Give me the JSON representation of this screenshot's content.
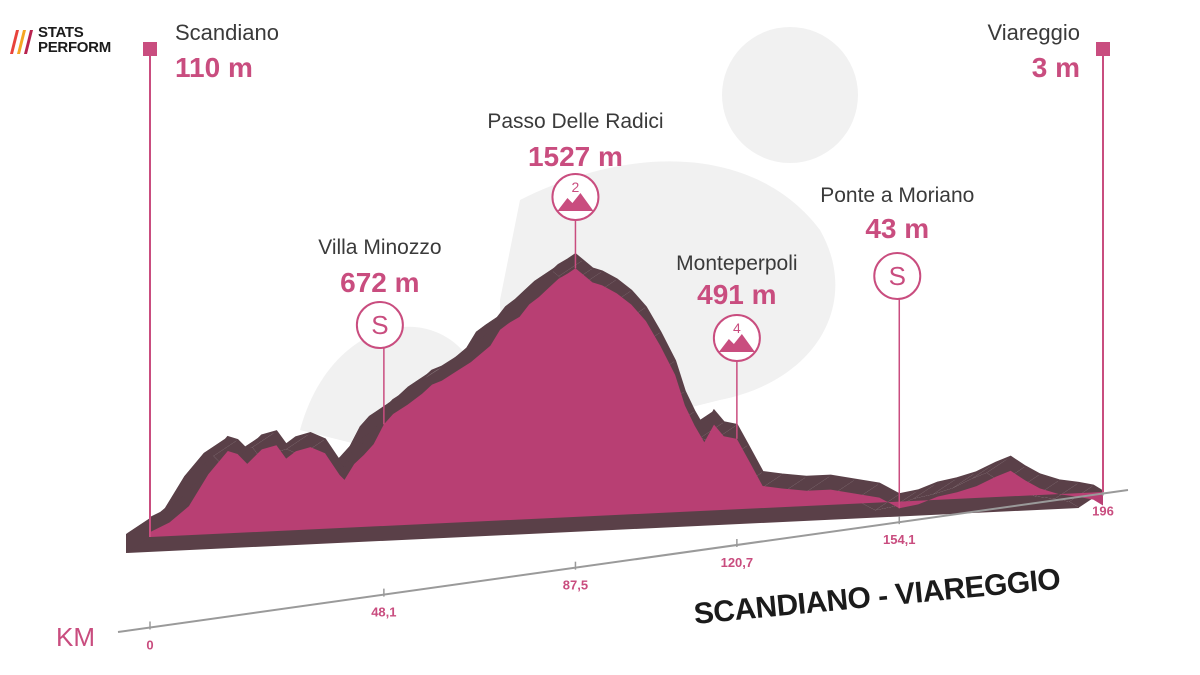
{
  "brand": {
    "line1": "STATS",
    "line2": "PERFORM",
    "colors": [
      "#e8433c",
      "#f5a623",
      "#b9234f"
    ]
  },
  "route_title": "SCANDIANO - VIAREGGIO",
  "theme": {
    "profile_fill": "#b83f73",
    "profile_side": "#5a4048",
    "marker": "#c94d7f",
    "name_text": "#3a3a3a",
    "watermark": "#f1f1f1"
  },
  "chart_data": {
    "type": "area",
    "title": "SCANDIANO - VIAREGGIO",
    "xlabel": "KM",
    "ylabel": "",
    "x_unit": "km",
    "y_unit": "m",
    "xlim": [
      0,
      196
    ],
    "ylim": [
      0,
      1600
    ],
    "x_ticks": [
      {
        "value": 0,
        "label": "0"
      },
      {
        "value": 48.1,
        "label": "48,1"
      },
      {
        "value": 87.5,
        "label": "87,5"
      },
      {
        "value": 120.7,
        "label": "120,7"
      },
      {
        "value": 154.1,
        "label": "154,1"
      },
      {
        "value": 196,
        "label": "196"
      }
    ],
    "profile": [
      [
        0,
        110
      ],
      [
        4,
        160
      ],
      [
        8,
        250
      ],
      [
        12,
        430
      ],
      [
        16,
        560
      ],
      [
        18,
        540
      ],
      [
        20,
        480
      ],
      [
        23,
        560
      ],
      [
        26,
        580
      ],
      [
        28,
        500
      ],
      [
        30,
        540
      ],
      [
        33,
        560
      ],
      [
        36,
        520
      ],
      [
        39,
        390
      ],
      [
        40,
        360
      ],
      [
        42,
        450
      ],
      [
        44,
        500
      ],
      [
        46,
        560
      ],
      [
        48.1,
        672
      ],
      [
        50,
        730
      ],
      [
        53,
        780
      ],
      [
        56,
        840
      ],
      [
        58,
        890
      ],
      [
        60,
        910
      ],
      [
        63,
        960
      ],
      [
        66,
        1010
      ],
      [
        70,
        1100
      ],
      [
        72,
        1190
      ],
      [
        74,
        1230
      ],
      [
        76,
        1260
      ],
      [
        78,
        1330
      ],
      [
        80,
        1370
      ],
      [
        82,
        1420
      ],
      [
        84,
        1470
      ],
      [
        86,
        1500
      ],
      [
        87.5,
        1527
      ],
      [
        89,
        1490
      ],
      [
        91,
        1440
      ],
      [
        93,
        1420
      ],
      [
        96,
        1370
      ],
      [
        99,
        1300
      ],
      [
        102,
        1200
      ],
      [
        105,
        1050
      ],
      [
        108,
        880
      ],
      [
        110,
        700
      ],
      [
        112,
        580
      ],
      [
        114,
        480
      ],
      [
        116,
        580
      ],
      [
        118,
        510
      ],
      [
        120.7,
        491
      ],
      [
        123,
        370
      ],
      [
        126,
        210
      ],
      [
        130,
        190
      ],
      [
        135,
        170
      ],
      [
        140,
        170
      ],
      [
        145,
        140
      ],
      [
        150,
        110
      ],
      [
        154.1,
        43
      ],
      [
        158,
        60
      ],
      [
        162,
        100
      ],
      [
        166,
        120
      ],
      [
        170,
        150
      ],
      [
        174,
        200
      ],
      [
        177,
        230
      ],
      [
        180,
        170
      ],
      [
        183,
        120
      ],
      [
        187,
        80
      ],
      [
        191,
        60
      ],
      [
        194,
        40
      ],
      [
        196,
        3
      ]
    ],
    "start": {
      "name": "Scandiano",
      "km": 0,
      "altitude_label": "110 m"
    },
    "finish": {
      "name": "Viareggio",
      "km": 196,
      "altitude_label": "3 m"
    },
    "points": [
      {
        "name": "Villa Minozzo",
        "km": 48.1,
        "altitude_label": "672 m",
        "badge": "sprint",
        "badge_label": "S"
      },
      {
        "name": "Passo Delle Radici",
        "km": 87.5,
        "altitude_label": "1527 m",
        "badge": "climb",
        "badge_label": "2"
      },
      {
        "name": "Monteperpoli",
        "km": 120.7,
        "altitude_label": "491 m",
        "badge": "climb",
        "badge_label": "4"
      },
      {
        "name": "Ponte a Moriano",
        "km": 154.1,
        "altitude_label": "43 m",
        "badge": "sprint",
        "badge_label": "S"
      }
    ]
  }
}
